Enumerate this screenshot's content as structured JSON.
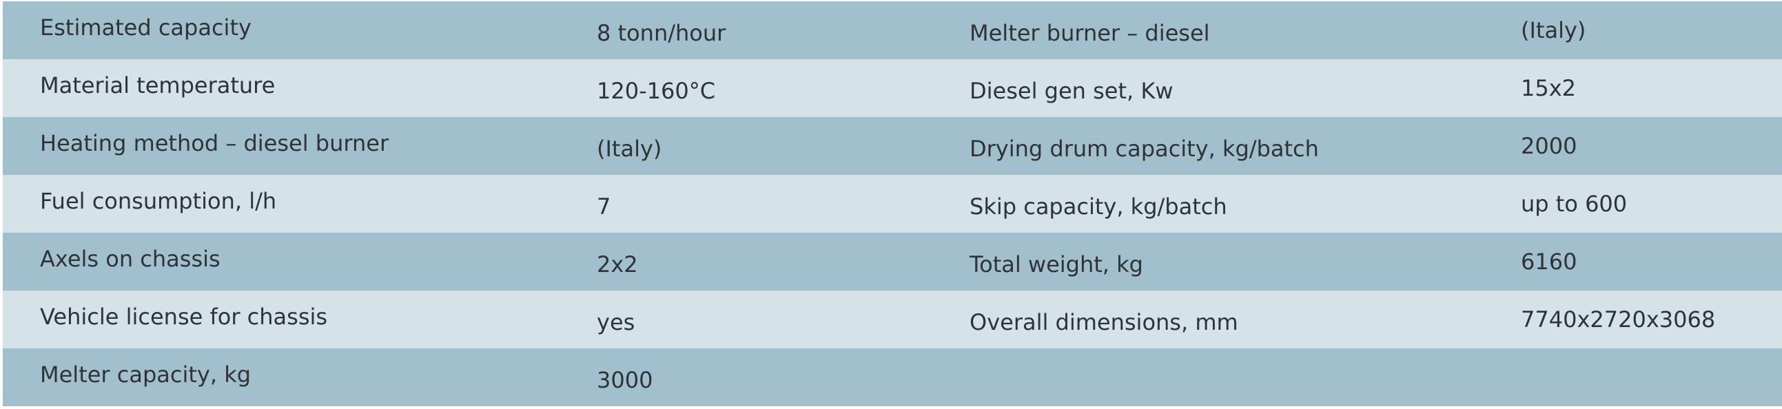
{
  "table": {
    "rows": [
      [
        "Estimated capacity",
        "8 tonn/hour",
        "Melter burner – diesel",
        "(Italy)"
      ],
      [
        "Material temperature",
        "120-160°C",
        "Diesel gen set, Kw",
        "15x2"
      ],
      [
        "Heating method – diesel burner",
        "(Italy)",
        "Drying drum capacity, kg/batch",
        "2000"
      ],
      [
        "Fuel consumption, l/h",
        "7",
        "Skip capacity, kg/batch",
        "up to 600"
      ],
      [
        "Axels on chassis",
        "2x2",
        "Total weight, kg",
        "6160"
      ],
      [
        "Vehicle license for chassis",
        "yes",
        "Overall dimensions, mm",
        "7740x2720x3068"
      ],
      [
        "Melter capacity, kg",
        "3000"
      ]
    ]
  }
}
